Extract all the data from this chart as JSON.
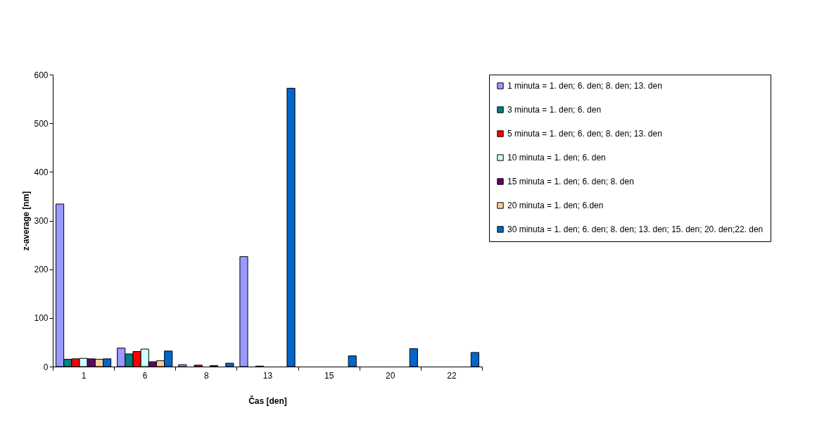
{
  "chart_data": {
    "type": "bar",
    "xlabel": "Čas [den]",
    "ylabel": "z-average [nm]",
    "categories": [
      "1",
      "6",
      "8",
      "13",
      "15",
      "20",
      "22"
    ],
    "series": [
      {
        "name": "1 minuta = 1. den; 6. den; 8. den; 13. den",
        "color": "#9999ff",
        "values": [
          334,
          38,
          4,
          226,
          null,
          null,
          null
        ]
      },
      {
        "name": "3 minuta = 1. den; 6. den",
        "color": "#008080",
        "values": [
          15,
          26,
          null,
          null,
          null,
          null,
          null
        ]
      },
      {
        "name": "5 minuta = 1. den; 6. den; 8. den; 13. den",
        "color": "#ff0000",
        "values": [
          16,
          31,
          3,
          1,
          null,
          null,
          null
        ]
      },
      {
        "name": "10 minuta = 1. den; 6. den",
        "color": "#ccffff",
        "values": [
          17,
          36,
          null,
          null,
          null,
          null,
          null
        ]
      },
      {
        "name": "15 minuta = 1. den; 6. den; 8. den",
        "color": "#660066",
        "values": [
          16,
          10,
          2,
          null,
          null,
          null,
          null
        ]
      },
      {
        "name": "20 minuta = 1. den; 6.den",
        "color": "#ffcc99",
        "values": [
          15,
          12,
          null,
          null,
          null,
          null,
          null
        ]
      },
      {
        "name": "30 minuta = 1. den; 6. den; 8. den; 13. den; 15. den; 20. den;22. den",
        "color": "#0066cc",
        "values": [
          16,
          32,
          7,
          572,
          22,
          37,
          29
        ]
      }
    ],
    "ylim": [
      0,
      600
    ],
    "yticks": [
      0,
      100,
      200,
      300,
      400,
      500,
      600
    ],
    "grid": false,
    "legend": "right"
  }
}
